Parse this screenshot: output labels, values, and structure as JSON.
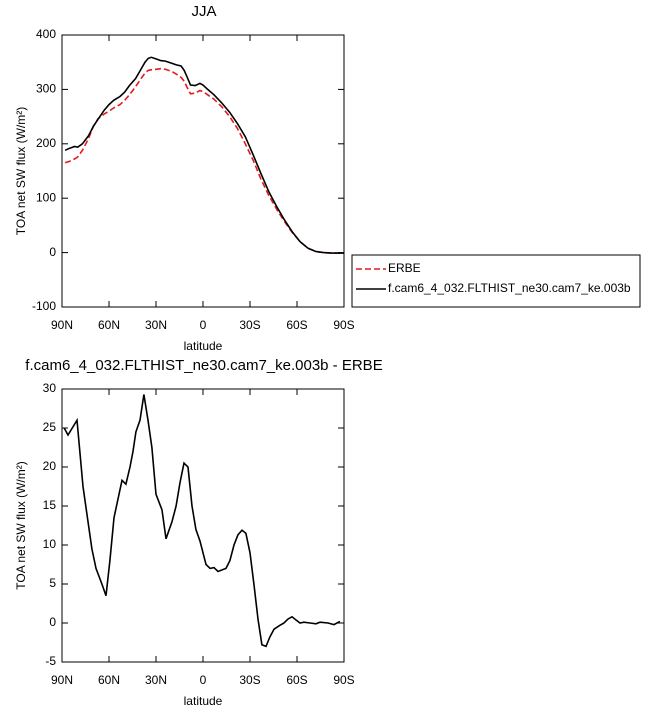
{
  "chart_data": [
    {
      "type": "line",
      "title": "JJA",
      "xlabel": "latitude",
      "ylabel": "TOA net SW flux (W/m²)",
      "xlim": [
        90,
        -90
      ],
      "ylim": [
        -100,
        400
      ],
      "xticks": [
        {
          "value": 90,
          "label": "90N"
        },
        {
          "value": 60,
          "label": "60N"
        },
        {
          "value": 30,
          "label": "30N"
        },
        0,
        {
          "value": -30,
          "label": "30S"
        },
        {
          "value": -60,
          "label": "60S"
        },
        {
          "value": -90,
          "label": "90S"
        }
      ],
      "yticks": [
        -100,
        0,
        100,
        200,
        300,
        400
      ],
      "legend": "right",
      "x": [
        88,
        85,
        82,
        80,
        77,
        73,
        70,
        67,
        63,
        60,
        57,
        53,
        50,
        47,
        43,
        40,
        37,
        35,
        33,
        30,
        27,
        24,
        20,
        17,
        14,
        12,
        10,
        8,
        5,
        2,
        0,
        -3,
        -7,
        -12,
        -17,
        -22,
        -27,
        -32,
        -37,
        -42,
        -47,
        -52,
        -57,
        -62,
        -67,
        -72,
        -77,
        -82,
        -87,
        -90
      ],
      "series": [
        {
          "name": "ERBE",
          "color": "#e41a1c",
          "line_style": "dashed",
          "values": [
            165,
            168,
            172,
            176,
            188,
            210,
            232,
            246,
            255,
            260,
            266,
            272,
            280,
            290,
            305,
            318,
            330,
            335,
            336,
            337,
            338,
            337,
            333,
            328,
            322,
            315,
            303,
            292,
            293,
            298,
            296,
            290,
            282,
            268,
            250,
            228,
            200,
            170,
            135,
            105,
            80,
            57,
            37,
            20,
            8,
            2,
            0,
            -1,
            -1,
            -1
          ]
        },
        {
          "name": "f.cam6_4_032.FLTHIST_ne30.cam7_ke.003b",
          "color": "#000000",
          "line_style": "solid",
          "values": [
            188,
            192,
            195,
            194,
            200,
            215,
            232,
            245,
            262,
            272,
            280,
            287,
            295,
            307,
            320,
            335,
            350,
            357,
            359,
            356,
            353,
            352,
            348,
            345,
            343,
            335,
            322,
            308,
            307,
            311,
            308,
            300,
            290,
            275,
            258,
            237,
            213,
            180,
            145,
            112,
            85,
            60,
            38,
            20,
            8,
            2,
            0,
            -1,
            -1,
            -1
          ]
        }
      ]
    },
    {
      "type": "line",
      "title": "f.cam6_4_032.FLTHIST_ne30.cam7_ke.003b - ERBE",
      "xlabel": "latitude",
      "ylabel": "TOA net SW flux (W/m²)",
      "xlim": [
        90,
        -90
      ],
      "ylim": [
        -5,
        30
      ],
      "xticks": [
        {
          "value": 90,
          "label": "90N"
        },
        {
          "value": 60,
          "label": "60N"
        },
        {
          "value": 30,
          "label": "30N"
        },
        0,
        {
          "value": -30,
          "label": "30S"
        },
        {
          "value": -60,
          "label": "60S"
        },
        {
          "value": -90,
          "label": "90S"
        }
      ],
      "yticks": [
        -5,
        0,
        5,
        10,
        15,
        20,
        25,
        30
      ],
      "x": [
        88.6,
        86.2,
        80.4,
        76.6,
        73.4,
        70.9,
        68.3,
        64.5,
        61.9,
        59.4,
        56.8,
        51.7,
        49.2,
        46.6,
        44.7,
        42.8,
        40.2,
        37.7,
        35.1,
        32.6,
        30,
        26.2,
        23.6,
        19.8,
        17.2,
        14.7,
        12.1,
        9.6,
        7,
        4.5,
        1.9,
        -1.9,
        -4.5,
        -7,
        -9.6,
        -14.7,
        -17.2,
        -19.8,
        -22.3,
        -24.9,
        -27.4,
        -30,
        -32.5,
        -35.1,
        -37.6,
        -40.2,
        -42.7,
        -45.3,
        -49.1,
        -51.7,
        -54.2,
        -56.8,
        -59.3,
        -61.9,
        -64.4,
        -68.3,
        -72.1,
        -74.7,
        -79.8,
        -83.6,
        -87.4
      ],
      "series": [
        {
          "name": "f.cam6_4_032.FLTHIST_ne30.cam7_ke.003b - ERBE",
          "color": "#000000",
          "line_style": "solid",
          "values": [
            25.0,
            24.1,
            26.0,
            17.5,
            13,
            9.5,
            7,
            5,
            3.5,
            8,
            13.5,
            18.3,
            17.8,
            20,
            22,
            24.5,
            26,
            29.3,
            26,
            22.5,
            16.5,
            14.5,
            10.8,
            13,
            15,
            18,
            20.5,
            20,
            15,
            12,
            10.5,
            7.5,
            7,
            7.1,
            6.6,
            7,
            8,
            10,
            11.3,
            11.9,
            11.5,
            9,
            5,
            0.5,
            -2.8,
            -3,
            -1.8,
            -0.8,
            -0.3,
            0,
            0.5,
            0.8,
            0.4,
            0,
            0.1,
            0,
            -0.1,
            0.1,
            0,
            -0.2,
            0.2
          ]
        }
      ]
    }
  ]
}
